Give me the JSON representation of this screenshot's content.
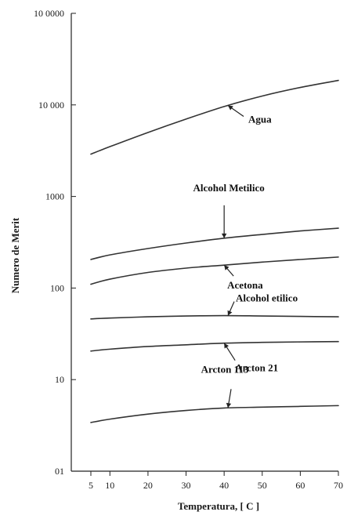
{
  "chart_data": {
    "type": "line",
    "xlabel": "Temperatura, [ C ]",
    "ylabel": "Numero de Merit",
    "xlim": [
      5,
      70
    ],
    "ylim": [
      1,
      100000
    ],
    "yscale": "log",
    "grid": false,
    "x_ticks": [
      5,
      10,
      20,
      30,
      40,
      50,
      60,
      70
    ],
    "x_tick_labels": [
      "5",
      "10",
      "20",
      "30",
      "40",
      "50",
      "60",
      "70"
    ],
    "y_ticks": [
      1,
      10,
      100,
      1000,
      10000,
      100000
    ],
    "y_tick_labels": [
      "01",
      "10",
      "100",
      "1000",
      "10 000",
      "10 0000"
    ],
    "series": [
      {
        "name": "Agua",
        "x": [
          5,
          10,
          20,
          30,
          40,
          50,
          60,
          70
        ],
        "y": [
          2900,
          3500,
          5000,
          7000,
          9600,
          12500,
          15500,
          18500
        ],
        "label_at_x": 41
      },
      {
        "name": "Alcohol Metilico",
        "x": [
          5,
          10,
          20,
          30,
          40,
          50,
          60,
          70
        ],
        "y": [
          205,
          230,
          270,
          310,
          350,
          385,
          420,
          450
        ],
        "label_at_x": 40
      },
      {
        "name": "Acetona",
        "x": [
          5,
          10,
          20,
          30,
          40,
          50,
          60,
          70
        ],
        "y": [
          110,
          125,
          148,
          165,
          178,
          192,
          205,
          218
        ],
        "label_at_x": 40
      },
      {
        "name": "Alcohol etilico",
        "x": [
          5,
          10,
          20,
          30,
          40,
          50,
          60,
          70
        ],
        "y": [
          46,
          47,
          48.5,
          49.5,
          50,
          49.5,
          49,
          48.5
        ],
        "label_at_x": 41
      },
      {
        "name": "Arcton 21",
        "x": [
          5,
          10,
          20,
          30,
          40,
          50,
          60,
          70
        ],
        "y": [
          20.5,
          21.5,
          23,
          24,
          25,
          25.5,
          25.8,
          26
        ],
        "label_at_x": 40
      },
      {
        "name": "Arcton 113",
        "x": [
          5,
          10,
          20,
          30,
          40,
          50,
          60,
          70
        ],
        "y": [
          3.4,
          3.7,
          4.2,
          4.6,
          4.9,
          5.0,
          5.1,
          5.2
        ],
        "label_at_x": 41
      }
    ]
  }
}
